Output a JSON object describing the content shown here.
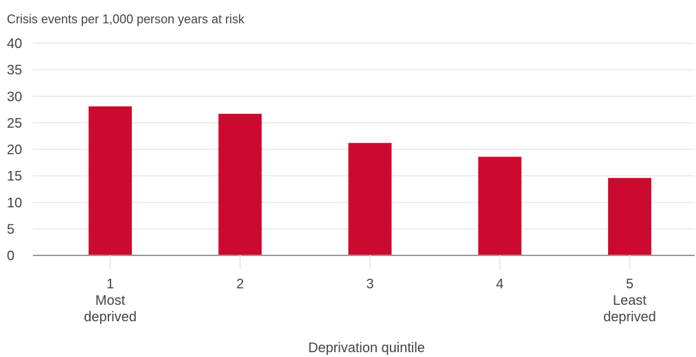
{
  "chart_data": {
    "type": "bar",
    "title": "",
    "ylabel": "Crisis events per 1,000 person years at risk",
    "xlabel": "Deprivation quintile",
    "categories": [
      "1",
      "2",
      "3",
      "4",
      "5"
    ],
    "category_sublabels": [
      [
        "Most",
        "deprived"
      ],
      [],
      [],
      [],
      [
        "Least",
        "deprived"
      ]
    ],
    "values": [
      28.1,
      26.7,
      21.2,
      18.6,
      14.6
    ],
    "ylim": [
      0,
      40
    ],
    "yticks": [
      0,
      5,
      10,
      15,
      20,
      25,
      30,
      35,
      40
    ],
    "grid": true,
    "bar_color": "#cc0a2f",
    "grid_color": "#e8e8e8",
    "axis_color": "#999999",
    "text_color": "#444444"
  }
}
